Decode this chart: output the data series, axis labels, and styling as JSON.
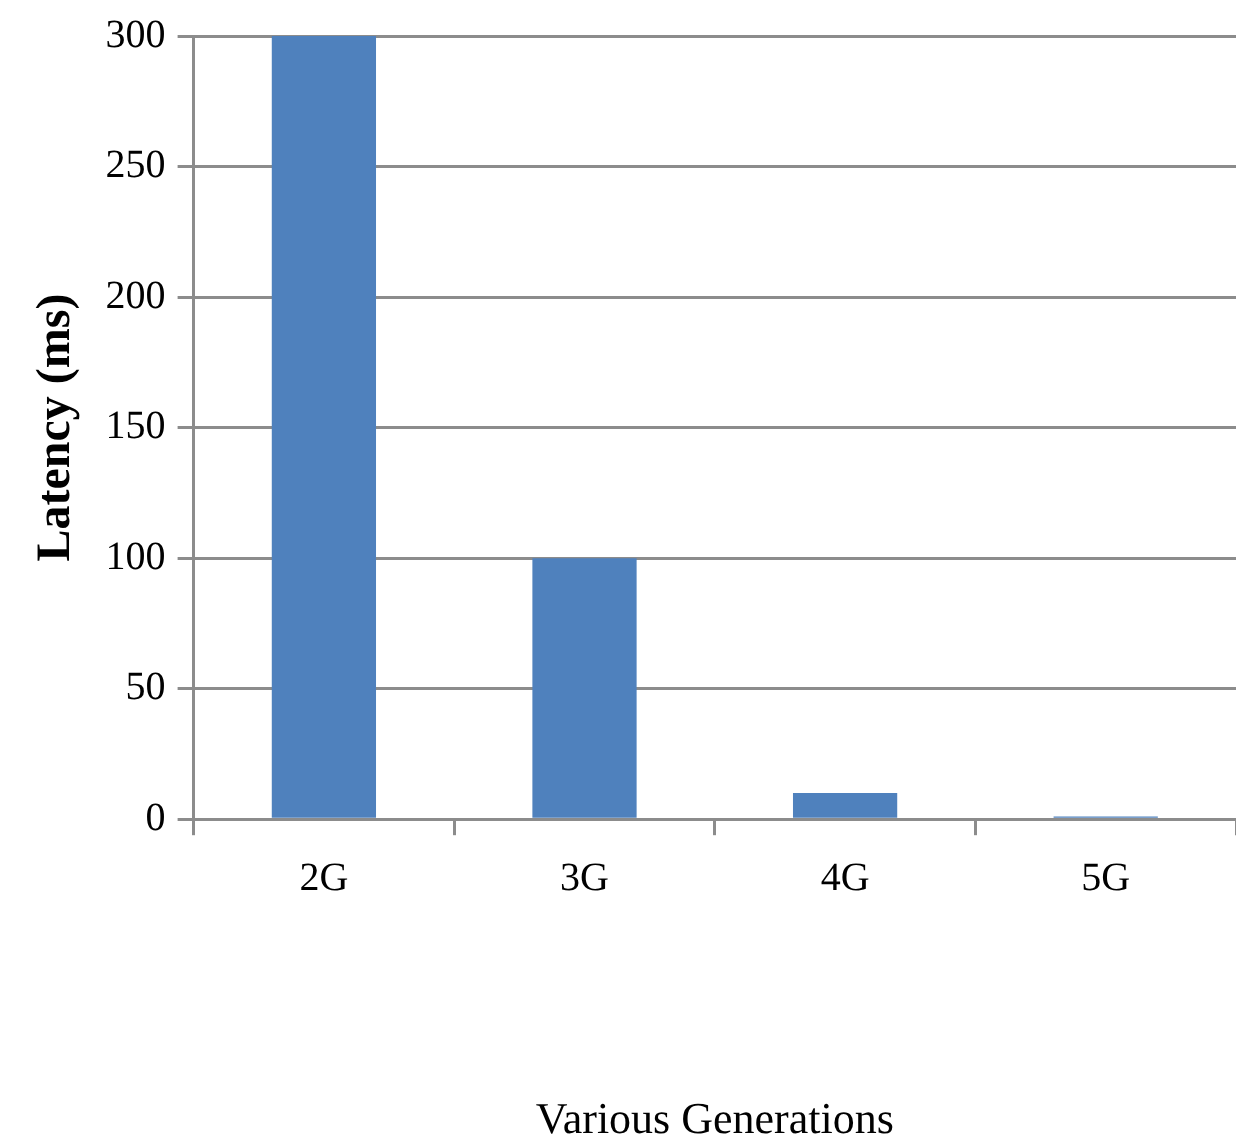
{
  "chart_data": {
    "type": "bar",
    "xlabel": "Various Generations",
    "ylabel": "Latency (ms)",
    "categories": [
      "2G",
      "3G",
      "4G",
      "5G"
    ],
    "values": [
      300,
      100,
      10,
      1
    ],
    "color": "#4f81bd",
    "ylim": [
      0,
      300
    ],
    "yticks": [
      0,
      50,
      100,
      150,
      200,
      250,
      300
    ],
    "grid": "y",
    "legend": false
  }
}
